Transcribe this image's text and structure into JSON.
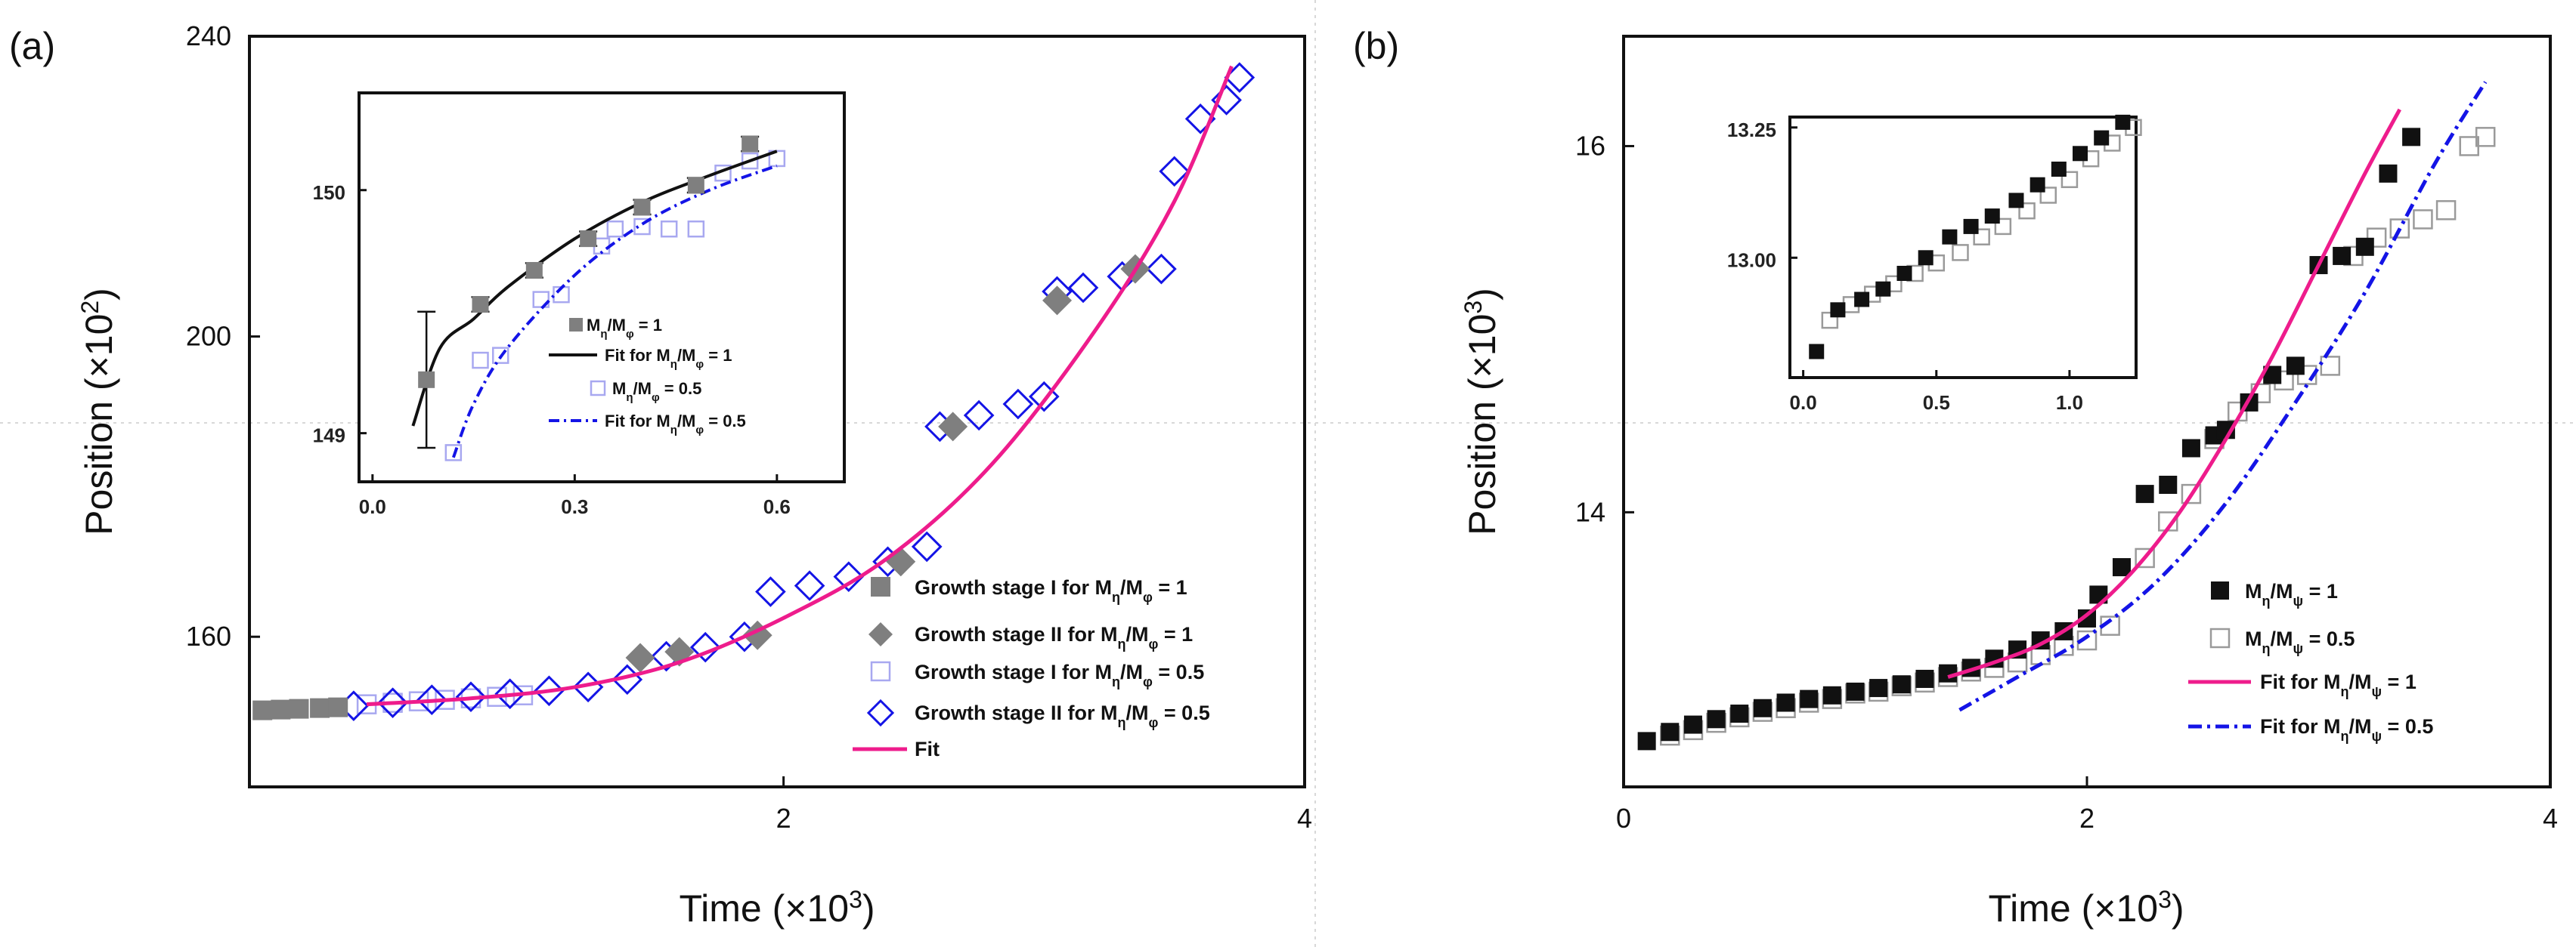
{
  "panels": [
    {
      "id": "a",
      "label": "(a)",
      "xlabel_base": "Time (×10",
      "xlabel_exp": "3",
      "ylabel_base": "Position (×10",
      "ylabel_exp": "2",
      "xticks": [
        {
          "v": 2,
          "t": "2"
        },
        {
          "v": 4,
          "t": "4"
        }
      ],
      "yticks": [
        {
          "v": 160,
          "t": "160"
        },
        {
          "v": 200,
          "t": "200"
        },
        {
          "v": 240,
          "t": "240"
        }
      ],
      "legend": [
        {
          "label": "Growth stage I  for M",
          "sub1": "η",
          "mid": "/M",
          "sub2": "φ",
          "tail": " = 1"
        },
        {
          "label": "Growth stage II for M",
          "sub1": "η",
          "mid": "/M",
          "sub2": "φ",
          "tail": " = 1"
        },
        {
          "label": "Growth stage I  for M",
          "sub1": "η",
          "mid": "/M",
          "sub2": "φ",
          "tail": " = 0.5"
        },
        {
          "label": "Growth stage II for M",
          "sub1": "η",
          "mid": "/M",
          "sub2": "φ",
          "tail": " = 0.5"
        },
        {
          "label": "Fit",
          "sub1": "",
          "mid": "",
          "sub2": "",
          "tail": ""
        }
      ],
      "inset": {
        "xticks": [
          {
            "v": 0.0,
            "t": "0.0"
          },
          {
            "v": 0.3,
            "t": "0.3"
          },
          {
            "v": 0.6,
            "t": "0.6"
          }
        ],
        "yticks": [
          {
            "v": 149,
            "t": "149"
          },
          {
            "v": 150,
            "t": "150"
          }
        ],
        "legend": [
          {
            "label": "M",
            "sub1": "η",
            "mid": "/M",
            "sub2": "φ",
            "tail": " = 1"
          },
          {
            "label": "Fit for  M",
            "sub1": "η",
            "mid": "/M",
            "sub2": "φ",
            "tail": " = 1"
          },
          {
            "label": "M",
            "sub1": "η",
            "mid": "/M",
            "sub2": "φ",
            "tail": " = 0.5"
          },
          {
            "label": "Fit for M",
            "sub1": "η",
            "mid": "/M",
            "sub2": "φ",
            "tail": " = 0.5"
          }
        ]
      }
    },
    {
      "id": "b",
      "label": "(b)",
      "xlabel_base": "Time (×10",
      "xlabel_exp": "3",
      "ylabel_base": "Position (×10",
      "ylabel_exp": "3",
      "xticks": [
        {
          "v": 0,
          "t": "0"
        },
        {
          "v": 2,
          "t": "2"
        },
        {
          "v": 4,
          "t": "4"
        }
      ],
      "yticks": [
        {
          "v": 14,
          "t": "14"
        },
        {
          "v": 16,
          "t": "16"
        }
      ],
      "legend": [
        {
          "label": "M",
          "sub1": "η",
          "mid": "/M",
          "sub2": "ψ",
          "tail": " = 1"
        },
        {
          "label": "M",
          "sub1": "η",
          "mid": "/M",
          "sub2": "ψ",
          "tail": " = 0.5"
        },
        {
          "label": "Fit for M",
          "sub1": "η",
          "mid": "/M",
          "sub2": "ψ",
          "tail": " = 1"
        },
        {
          "label": "Fit for M",
          "sub1": "η",
          "mid": "/M",
          "sub2": "ψ",
          "tail": " = 0.5"
        }
      ],
      "inset": {
        "xticks": [
          {
            "v": 0.0,
            "t": "0.0"
          },
          {
            "v": 0.5,
            "t": "0.5"
          },
          {
            "v": 1.0,
            "t": "1.0"
          }
        ],
        "yticks": [
          {
            "v": 13.0,
            "t": "13.00"
          },
          {
            "v": 13.25,
            "t": "13.25"
          }
        ]
      }
    }
  ],
  "colors": {
    "gray_marker": "#7f7f7f",
    "blue": "#1414e6",
    "light_blue": "#a8a8f0",
    "fit_pink": "#ee1c8c",
    "black": "#111111",
    "open_gray": "#9a9a9a"
  },
  "chart_data": [
    {
      "type": "scatter",
      "panel": "a",
      "title": "",
      "xlabel": "Time (×10^3)",
      "ylabel": "Position (×10^2)",
      "xlim": [
        -0.05,
        4.0
      ],
      "ylim": [
        140,
        240
      ],
      "series": [
        {
          "name": "Growth stage I for Mη/Mφ = 1",
          "marker": "filled-square",
          "x": [
            0.0,
            0.07,
            0.14,
            0.22,
            0.29
          ],
          "y": [
            150.2,
            150.3,
            150.4,
            150.5,
            150.6
          ]
        },
        {
          "name": "Growth stage II for Mη/Mφ = 1",
          "marker": "filled-diamond",
          "x": [
            1.45,
            1.6,
            1.9,
            2.45,
            2.65,
            3.05,
            3.35
          ],
          "y": [
            157.2,
            158.0,
            160.2,
            170.0,
            188.0,
            204.8,
            209.0
          ]
        },
        {
          "name": "Growth stage I for Mη/Mφ = 0.5",
          "marker": "open-square",
          "x": [
            0.4,
            0.5,
            0.6,
            0.7,
            0.8,
            0.9,
            1.0
          ],
          "y": [
            151.0,
            151.2,
            151.4,
            151.6,
            151.8,
            152.0,
            152.2
          ]
        },
        {
          "name": "Growth stage II for Mη/Mφ = 0.5",
          "marker": "open-diamond",
          "x": [
            0.35,
            0.5,
            0.65,
            0.8,
            0.95,
            1.1,
            1.25,
            1.4,
            1.55,
            1.7,
            1.85,
            1.95,
            2.1,
            2.25,
            2.4,
            2.55,
            2.6,
            2.75,
            2.9,
            3.0,
            3.05,
            3.15,
            3.3,
            3.45,
            3.5,
            3.6,
            3.7,
            3.75
          ],
          "y": [
            150.8,
            151.2,
            151.6,
            152.0,
            152.4,
            152.8,
            153.3,
            154.3,
            157.4,
            158.6,
            160.0,
            166.0,
            166.8,
            168.0,
            170.0,
            172.0,
            188.0,
            189.5,
            191.0,
            192.0,
            206.0,
            206.5,
            208.0,
            209.0,
            222.0,
            229.0,
            231.5,
            234.5
          ]
        },
        {
          "name": "Fit",
          "line": "solid",
          "x": [
            0.4,
            0.8,
            1.2,
            1.6,
            2.0,
            2.4,
            2.8,
            3.2,
            3.5,
            3.72
          ],
          "y": [
            151.0,
            151.8,
            153.3,
            156.6,
            162.5,
            170.5,
            183.0,
            201.0,
            218.0,
            236.0
          ]
        }
      ]
    },
    {
      "type": "scatter",
      "panel": "a-inset",
      "xlim": [
        -0.02,
        0.7
      ],
      "ylim": [
        148.8,
        150.4
      ],
      "series": [
        {
          "name": "Mη/Mφ = 1",
          "marker": "filled-square",
          "x": [
            0.08,
            0.16,
            0.24,
            0.32,
            0.4,
            0.48,
            0.56
          ],
          "y": [
            149.22,
            149.53,
            149.67,
            149.8,
            149.93,
            150.02,
            150.19
          ],
          "yerr": [
            0.28,
            0.03,
            0.03,
            0.03,
            0.03,
            0.03,
            0.03
          ]
        },
        {
          "name": "Fit for Mη/Mφ = 1",
          "line": "solid",
          "x": [
            0.06,
            0.1,
            0.15,
            0.2,
            0.3,
            0.4,
            0.5,
            0.6
          ],
          "y": [
            149.03,
            149.35,
            149.47,
            149.6,
            149.8,
            149.95,
            150.06,
            150.16
          ]
        },
        {
          "name": "Mη/Mφ = 0.5",
          "marker": "open-square",
          "x": [
            0.12,
            0.16,
            0.19,
            0.25,
            0.28,
            0.34,
            0.36,
            0.4,
            0.44,
            0.48,
            0.52,
            0.56,
            0.6
          ],
          "y": [
            148.92,
            149.3,
            149.32,
            149.55,
            149.57,
            149.77,
            149.84,
            149.85,
            149.84,
            149.84,
            150.07,
            150.12,
            150.13
          ]
        },
        {
          "name": "Fit for Mη/Mφ = 0.5",
          "line": "dash-dot",
          "x": [
            0.12,
            0.15,
            0.2,
            0.3,
            0.4,
            0.5,
            0.6
          ],
          "y": [
            148.9,
            149.12,
            149.35,
            149.65,
            149.86,
            150.0,
            150.1
          ]
        }
      ]
    },
    {
      "type": "scatter",
      "panel": "b",
      "title": "",
      "xlabel": "Time (×10^3)",
      "ylabel": "Position (×10^3)",
      "xlim": [
        0.0,
        4.0
      ],
      "ylim": [
        12.5,
        16.6
      ],
      "series": [
        {
          "name": "Mη/Mψ = 1",
          "marker": "filled-square",
          "x": [
            0.1,
            0.2,
            0.3,
            0.4,
            0.5,
            0.6,
            0.7,
            0.8,
            0.9,
            1.0,
            1.1,
            1.2,
            1.3,
            1.4,
            1.5,
            1.6,
            1.7,
            1.8,
            1.9,
            2.0,
            2.05,
            2.15,
            2.25,
            2.35,
            2.45,
            2.55,
            2.6,
            2.7,
            2.8,
            2.9,
            3.0,
            3.1,
            3.2,
            3.3,
            3.4
          ],
          "y": [
            12.75,
            12.8,
            12.84,
            12.87,
            12.9,
            12.93,
            12.96,
            12.98,
            13.0,
            13.02,
            13.04,
            13.06,
            13.09,
            13.12,
            13.15,
            13.2,
            13.25,
            13.3,
            13.35,
            13.42,
            13.55,
            13.7,
            14.1,
            14.15,
            14.35,
            14.42,
            14.45,
            14.6,
            14.75,
            14.8,
            15.35,
            15.4,
            15.45,
            15.85,
            16.05
          ]
        },
        {
          "name": "Mη/Mψ = 0.5",
          "marker": "open-square",
          "x": [
            0.2,
            0.3,
            0.4,
            0.5,
            0.6,
            0.7,
            0.8,
            0.9,
            1.0,
            1.1,
            1.2,
            1.3,
            1.4,
            1.5,
            1.6,
            1.7,
            1.8,
            1.9,
            2.0,
            2.1,
            2.25,
            2.35,
            2.45,
            2.55,
            2.65,
            2.75,
            2.85,
            2.95,
            3.05,
            3.15,
            3.25,
            3.35,
            3.45,
            3.55,
            3.65,
            3.72
          ],
          "y": [
            12.78,
            12.81,
            12.85,
            12.88,
            12.91,
            12.93,
            12.96,
            12.98,
            13.01,
            13.02,
            13.05,
            13.07,
            13.1,
            13.13,
            13.15,
            13.18,
            13.22,
            13.27,
            13.3,
            13.38,
            13.75,
            13.95,
            14.1,
            14.4,
            14.55,
            14.65,
            14.72,
            14.75,
            14.8,
            15.4,
            15.5,
            15.55,
            15.6,
            15.65,
            16.0,
            16.05
          ]
        },
        {
          "name": "Fit for Mη/Mψ = 1",
          "line": "solid",
          "x": [
            1.4,
            1.6,
            1.8,
            2.0,
            2.2,
            2.4,
            2.6,
            2.8,
            3.0,
            3.2,
            3.35
          ],
          "y": [
            13.1,
            13.18,
            13.28,
            13.44,
            13.68,
            14.0,
            14.4,
            14.85,
            15.35,
            15.85,
            16.2
          ]
        },
        {
          "name": "Fit for Mη/Mψ = 0.5",
          "line": "dash-dot",
          "x": [
            1.45,
            1.7,
            2.0,
            2.3,
            2.6,
            2.9,
            3.2,
            3.5,
            3.72
          ],
          "y": [
            12.92,
            13.1,
            13.32,
            13.62,
            14.05,
            14.6,
            15.2,
            15.9,
            16.35
          ]
        }
      ]
    },
    {
      "type": "scatter",
      "panel": "b-inset",
      "xlim": [
        -0.05,
        1.25
      ],
      "ylim": [
        12.77,
        13.27
      ],
      "series": [
        {
          "name": "Mη/Mψ = 1",
          "marker": "filled-square",
          "x": [
            0.05,
            0.13,
            0.22,
            0.3,
            0.38,
            0.46,
            0.55,
            0.63,
            0.71,
            0.8,
            0.88,
            0.96,
            1.04,
            1.12,
            1.2
          ],
          "y": [
            12.82,
            12.9,
            12.92,
            12.94,
            12.97,
            13.0,
            13.04,
            13.06,
            13.08,
            13.11,
            13.14,
            13.17,
            13.2,
            13.23,
            13.26
          ]
        },
        {
          "name": "Mη/Mψ = 0.5",
          "marker": "open-square",
          "x": [
            0.1,
            0.18,
            0.26,
            0.34,
            0.42,
            0.5,
            0.59,
            0.67,
            0.75,
            0.84,
            0.92,
            1.0,
            1.08,
            1.16,
            1.24
          ],
          "y": [
            12.88,
            12.91,
            12.93,
            12.95,
            12.97,
            12.99,
            13.01,
            13.04,
            13.06,
            13.09,
            13.12,
            13.15,
            13.19,
            13.22,
            13.25
          ]
        }
      ]
    }
  ]
}
